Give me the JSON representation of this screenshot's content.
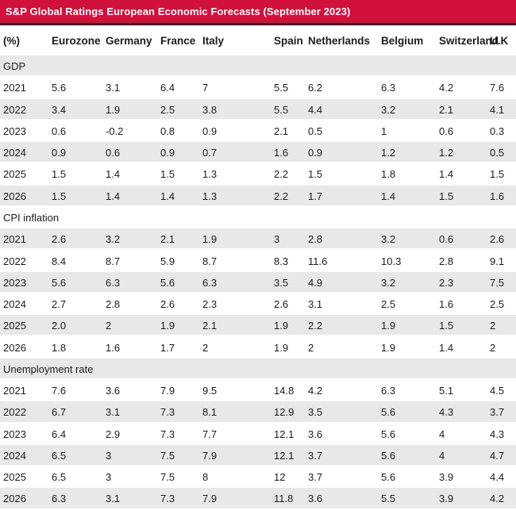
{
  "title": "S&P Global Ratings European Economic Forecasts (September 2023)",
  "colors": {
    "brand_red": "#d2103d",
    "brand_red_dark": "#5e0f1d",
    "stripe_gray": "#e8e8e6",
    "text": "#1c1c1c",
    "title_text": "#ffffff"
  },
  "chart_data": {
    "type": "table",
    "title": "S&P Global Ratings European Economic Forecasts (September 2023)",
    "unit_label": "(%)",
    "columns": [
      "Eurozone",
      "Germany",
      "France",
      "Italy",
      "Spain",
      "Netherlands",
      "Belgium",
      "Switzerland",
      "U.K"
    ],
    "sections": [
      {
        "label": "GDP",
        "rows": [
          {
            "year": "2021",
            "values": [
              "5.6",
              "3.1",
              "6.4",
              "7",
              "5.5",
              "6.2",
              "6.3",
              "4.2",
              "7.6"
            ]
          },
          {
            "year": "2022",
            "values": [
              "3.4",
              "1.9",
              "2.5",
              "3.8",
              "5.5",
              "4.4",
              "3.2",
              "2.1",
              "4.1"
            ]
          },
          {
            "year": "2023",
            "values": [
              "0.6",
              "-0.2",
              "0.8",
              "0.9",
              "2.1",
              "0.5",
              "1",
              "0.6",
              "0.3"
            ]
          },
          {
            "year": "2024",
            "values": [
              "0.9",
              "0.6",
              "0.9",
              "0.7",
              "1.6",
              "0.9",
              "1.2",
              "1.2",
              "0.5"
            ]
          },
          {
            "year": "2025",
            "values": [
              "1.5",
              "1.4",
              "1.5",
              "1.3",
              "2.2",
              "1.5",
              "1.8",
              "1.4",
              "1.5"
            ]
          },
          {
            "year": "2026",
            "values": [
              "1.5",
              "1.4",
              "1.4",
              "1.3",
              "2.2",
              "1.7",
              "1.4",
              "1.5",
              "1.6"
            ]
          }
        ]
      },
      {
        "label": "CPI inflation",
        "rows": [
          {
            "year": "2021",
            "values": [
              "2.6",
              "3.2",
              "2.1",
              "1.9",
              "3",
              "2.8",
              "3.2",
              "0.6",
              "2.6"
            ]
          },
          {
            "year": "2022",
            "values": [
              "8.4",
              "8.7",
              "5.9",
              "8.7",
              "8.3",
              "11.6",
              "10.3",
              "2.8",
              "9.1"
            ]
          },
          {
            "year": "2023",
            "values": [
              "5.6",
              "6.3",
              "5.6",
              "6.3",
              "3.5",
              "4.9",
              "3.2",
              "2.3",
              "7.5"
            ]
          },
          {
            "year": "2024",
            "values": [
              "2.7",
              "2.8",
              "2.6",
              "2.3",
              "2.6",
              "3.1",
              "2.5",
              "1.6",
              "2.5"
            ]
          },
          {
            "year": "2025",
            "values": [
              "2.0",
              "2",
              "1.9",
              "2.1",
              "1.9",
              "2.2",
              "1.9",
              "1.5",
              "2"
            ]
          },
          {
            "year": "2026",
            "values": [
              "1.8",
              "1.6",
              "1.7",
              "2",
              "1.9",
              "2",
              "1.9",
              "1.4",
              "2"
            ]
          }
        ]
      },
      {
        "label": "Unemployment rate",
        "rows": [
          {
            "year": "2021",
            "values": [
              "7.6",
              "3.6",
              "7.9",
              "9.5",
              "14.8",
              "4.2",
              "6.3",
              "5.1",
              "4.5"
            ]
          },
          {
            "year": "2022",
            "values": [
              "6.7",
              "3.1",
              "7.3",
              "8.1",
              "12.9",
              "3.5",
              "5.6",
              "4.3",
              "3.7"
            ]
          },
          {
            "year": "2023",
            "values": [
              "6.4",
              "2.9",
              "7.3",
              "7.7",
              "12.1",
              "3.6",
              "5.6",
              "4",
              "4.3"
            ]
          },
          {
            "year": "2024",
            "values": [
              "6.5",
              "3",
              "7.5",
              "7.9",
              "12.1",
              "3.7",
              "5.6",
              "4",
              "4.7"
            ]
          },
          {
            "year": "2025",
            "values": [
              "6.5",
              "3",
              "7.5",
              "8",
              "12",
              "3.7",
              "5.6",
              "3.9",
              "4.4"
            ]
          },
          {
            "year": "2026",
            "values": [
              "6.3",
              "3.1",
              "7.3",
              "7.9",
              "11.8",
              "3.6",
              "5.5",
              "3.9",
              "4.2"
            ]
          }
        ]
      }
    ]
  }
}
